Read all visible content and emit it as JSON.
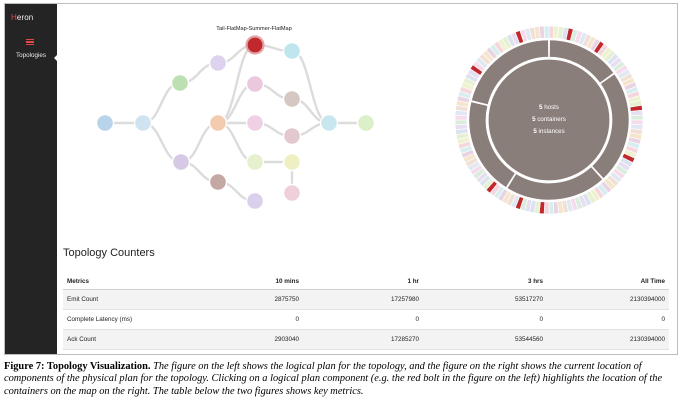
{
  "app": {
    "brand_first": "H",
    "brand_rest": "eron"
  },
  "sidebar": {
    "items": [
      {
        "label": "Topologies",
        "icon": "menu-icon"
      }
    ]
  },
  "logical_plan": {
    "selected_label": "Tail-FlatMap-Summer-FlatMap",
    "nodes": [
      {
        "id": "spout1",
        "color": "#b9d4ea"
      },
      {
        "id": "spout2",
        "color": "#cfe4f0"
      },
      {
        "id": "green1",
        "color": "#bde0b3"
      },
      {
        "id": "purple1",
        "color": "#d6c9e6"
      },
      {
        "id": "lav1",
        "color": "#ddd3ee"
      },
      {
        "id": "orange1",
        "color": "#f3ccb0"
      },
      {
        "id": "red-bolt",
        "color": "#c0282d",
        "selected": true
      },
      {
        "id": "pink1",
        "color": "#ecc8dc"
      },
      {
        "id": "pink2",
        "color": "#f0d0e4"
      },
      {
        "id": "lightgreen1",
        "color": "#e6f0cf"
      },
      {
        "id": "brown1",
        "color": "#c4a8a4"
      },
      {
        "id": "lav2",
        "color": "#d9d0ec"
      },
      {
        "id": "cyan1",
        "color": "#bfe6ee"
      },
      {
        "id": "taupe1",
        "color": "#d7c7c3"
      },
      {
        "id": "rose1",
        "color": "#e2c9cf"
      },
      {
        "id": "cyan2",
        "color": "#c9e7ef"
      },
      {
        "id": "rose2",
        "color": "#efd0da"
      },
      {
        "id": "yellow1",
        "color": "#eef0c4"
      },
      {
        "id": "green2",
        "color": "#dbefc9"
      }
    ]
  },
  "physical_plan": {
    "stats": [
      {
        "count": "5",
        "label": "hosts"
      },
      {
        "count": "5",
        "label": "containers"
      },
      {
        "count": "5",
        "label": "instances"
      }
    ],
    "ring_color": "#8a7e7a",
    "highlight_color": "#c0282d"
  },
  "counters": {
    "title": "Topology Counters",
    "headers": [
      "Metrics",
      "10 mins",
      "1 hr",
      "3 hrs",
      "All Time"
    ],
    "rows": [
      {
        "metric": "Emit Count",
        "values": [
          "2875750",
          "17257980",
          "53517270",
          "2130394000"
        ]
      },
      {
        "metric": "Complete Latency (ms)",
        "values": [
          "0",
          "0",
          "0",
          "0"
        ]
      },
      {
        "metric": "Ack Count",
        "values": [
          "2903040",
          "17285270",
          "53544560",
          "2130394000"
        ]
      }
    ]
  },
  "caption": {
    "label": "Figure 7: Topology Visualization.",
    "text": "The figure on the left shows the logical plan for the topology, and the figure on the right shows the current location of components of the physical plan for the topology. Clicking on a logical plan component (e.g. the red bolt in the figure on the left) highlights the location of the containers on the map on the right. The table below the two figures shows key metrics."
  }
}
